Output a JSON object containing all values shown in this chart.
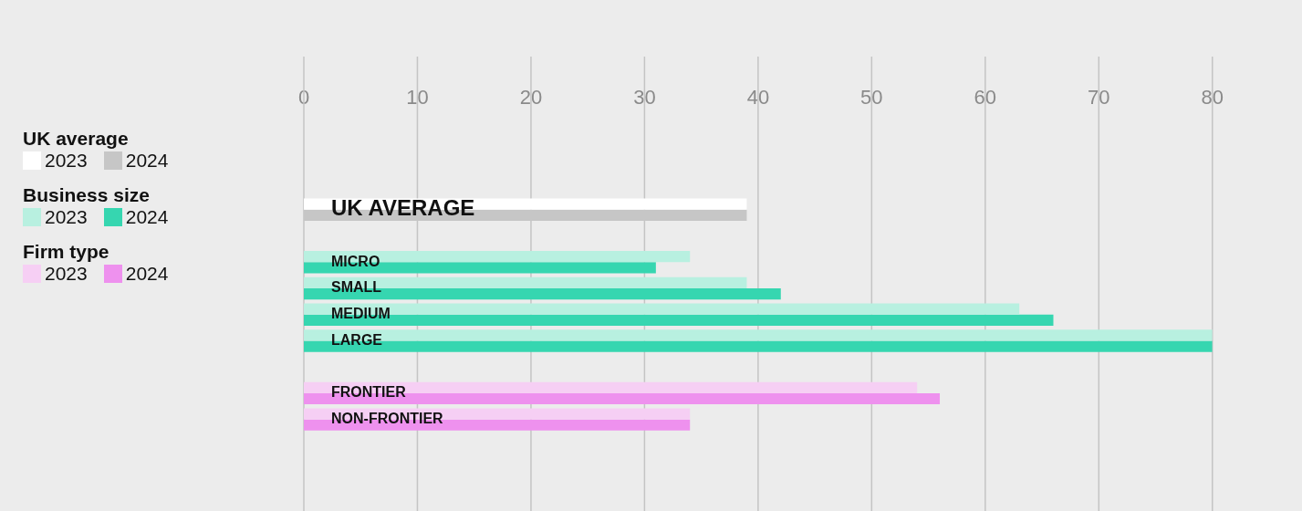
{
  "chart_data": {
    "type": "bar",
    "orientation": "horizontal",
    "categories": [
      "UK AVERAGE",
      null,
      "MICRO",
      "SMALL",
      "MEDIUM",
      "LARGE",
      null,
      "FRONTIER",
      "NON-FRONTIER"
    ],
    "series": [
      {
        "name": "2023",
        "values": [
          39,
          null,
          34,
          39,
          63,
          80,
          null,
          54,
          34
        ],
        "colors": [
          "#ffffff",
          null,
          "#b8f0e0",
          "#b8f0e0",
          "#b8f0e0",
          "#b8f0e0",
          null,
          "#f6cff4",
          "#f6cff4"
        ]
      },
      {
        "name": "2024",
        "values": [
          39,
          null,
          31,
          42,
          66,
          80,
          null,
          56,
          34
        ],
        "colors": [
          "#c6c6c6",
          null,
          "#36d6b0",
          "#36d6b0",
          "#36d6b0",
          "#36d6b0",
          null,
          "#ee91ee",
          "#ee91ee"
        ]
      }
    ],
    "xlim": [
      0,
      80
    ],
    "xticks": [
      0,
      10,
      20,
      30,
      40,
      50,
      60,
      70,
      80
    ],
    "grid": "x",
    "legend": "left",
    "annotations": [
      "UK average",
      "Business size",
      "Firm type"
    ]
  }
}
